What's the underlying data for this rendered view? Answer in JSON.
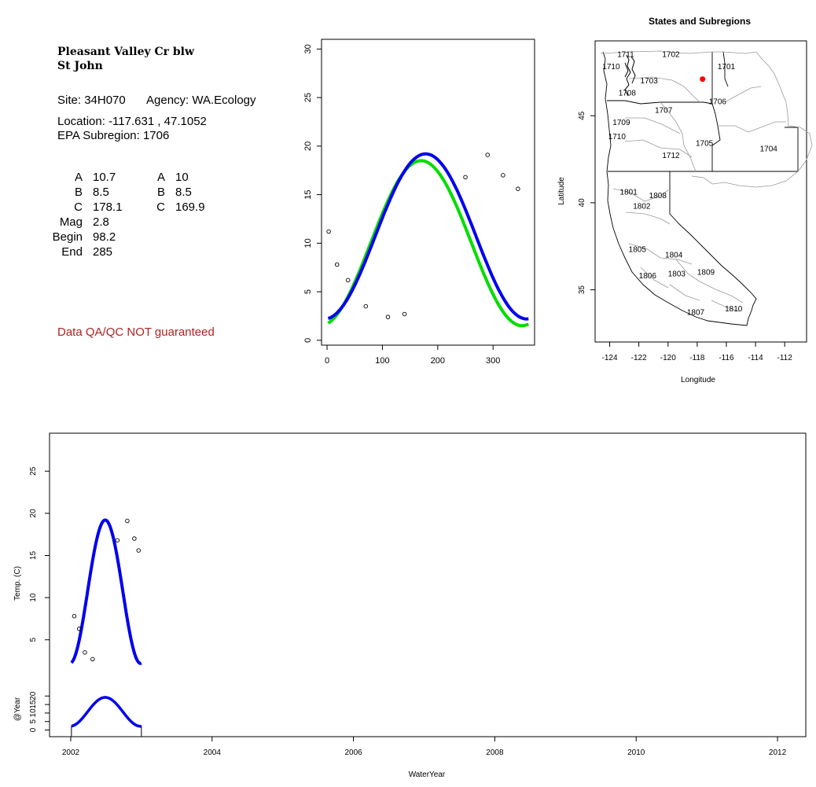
{
  "site_info": {
    "title_line1": "Pleasant Valley Cr blw",
    "title_line2": "St John",
    "site_label": "Site:",
    "site_value": "34H070",
    "agency_label": "Agency:",
    "agency_value": "WA.Ecology",
    "location_label": "Location:",
    "location_value": "-117.631 , 47.1052",
    "subregion_label": "EPA Subregion:",
    "subregion_value": "1706",
    "params_left": [
      {
        "label": "A",
        "value": "10.7"
      },
      {
        "label": "B",
        "value": "8.5"
      },
      {
        "label": "C",
        "value": "178.1"
      },
      {
        "label": "Mag",
        "value": "2.8"
      },
      {
        "label": "Begin",
        "value": "98.2"
      },
      {
        "label": "End",
        "value": "285"
      }
    ],
    "params_right": [
      {
        "label": "A",
        "value": "10"
      },
      {
        "label": "B",
        "value": "8.5"
      },
      {
        "label": "C",
        "value": "169.9"
      }
    ],
    "qa_warning": "Data QA/QC NOT guaranteed",
    "colors": {
      "warning": "#b22222"
    }
  },
  "chart_data": [
    {
      "type": "line",
      "title": "",
      "xlabel": "",
      "ylabel": "",
      "xlim": [
        -10,
        375
      ],
      "ylim": [
        -0.5,
        31
      ],
      "x_ticks": [
        0,
        100,
        200,
        300
      ],
      "y_ticks": [
        0,
        5,
        10,
        15,
        20,
        25,
        30
      ],
      "points": [
        [
          3,
          11.2
        ],
        [
          18,
          7.8
        ],
        [
          38,
          6.2
        ],
        [
          70,
          3.5
        ],
        [
          110,
          2.4
        ],
        [
          140,
          2.7
        ],
        [
          250,
          16.8
        ],
        [
          290,
          19.1
        ],
        [
          318,
          17.0
        ],
        [
          345,
          15.6
        ]
      ],
      "series": [
        {
          "color": "#00dd00",
          "A": 10,
          "B": 8.5,
          "C": 169.9,
          "x_range": [
            2,
            365
          ]
        },
        {
          "color": "#0000ee",
          "A": 10.7,
          "B": 8.5,
          "C": 178.1,
          "x_range": [
            2,
            365
          ]
        }
      ]
    },
    {
      "type": "map",
      "title": "States and Subregions",
      "xlabel": "Longitude",
      "ylabel": "Latitude",
      "xlim": [
        -125,
        -110.5
      ],
      "ylim": [
        32,
        49.3
      ],
      "x_ticks": [
        -124,
        -122,
        -120,
        -118,
        -116,
        -114,
        -112
      ],
      "y_ticks": [
        35,
        40,
        45
      ],
      "site_point": {
        "lon": -117.631,
        "lat": 47.1052,
        "color": "#ff0000"
      },
      "region_labels": [
        {
          "text": "1711",
          "lon": -122.9,
          "lat": 48.5
        },
        {
          "text": "1702",
          "lon": -119.8,
          "lat": 48.5
        },
        {
          "text": "1710",
          "lon": -123.9,
          "lat": 47.8
        },
        {
          "text": "1701",
          "lon": -116.0,
          "lat": 47.8
        },
        {
          "text": "1703",
          "lon": -121.3,
          "lat": 47.0
        },
        {
          "text": "1708",
          "lon": -122.8,
          "lat": 46.3
        },
        {
          "text": "1706",
          "lon": -116.6,
          "lat": 45.8
        },
        {
          "text": "1707",
          "lon": -120.3,
          "lat": 45.3
        },
        {
          "text": "1709",
          "lon": -123.2,
          "lat": 44.6
        },
        {
          "text": "1710",
          "lon": -123.5,
          "lat": 43.8
        },
        {
          "text": "1705",
          "lon": -117.5,
          "lat": 43.4
        },
        {
          "text": "1704",
          "lon": -113.1,
          "lat": 43.1
        },
        {
          "text": "1712",
          "lon": -119.8,
          "lat": 42.7
        },
        {
          "text": "1801",
          "lon": -122.7,
          "lat": 40.6
        },
        {
          "text": "1808",
          "lon": -120.7,
          "lat": 40.4
        },
        {
          "text": "1802",
          "lon": -121.8,
          "lat": 39.8
        },
        {
          "text": "1805",
          "lon": -122.1,
          "lat": 37.3
        },
        {
          "text": "1804",
          "lon": -119.6,
          "lat": 37.0
        },
        {
          "text": "1806",
          "lon": -121.4,
          "lat": 35.8
        },
        {
          "text": "1803",
          "lon": -119.4,
          "lat": 35.9
        },
        {
          "text": "1809",
          "lon": -117.4,
          "lat": 36.0
        },
        {
          "text": "1807",
          "lon": -118.1,
          "lat": 33.7
        },
        {
          "text": "1810",
          "lon": -115.5,
          "lat": 33.9
        }
      ]
    },
    {
      "type": "line",
      "title": "",
      "xlabel": "WaterYear",
      "ylabel": "Temp. (C)",
      "sub_ylabel": "@Year",
      "xlim": [
        2001.7,
        2012.4
      ],
      "ylim": [
        0.5,
        29.5
      ],
      "x_ticks": [
        2002,
        2004,
        2006,
        2008,
        2010,
        2012
      ],
      "y_ticks": [
        5,
        10,
        15,
        20,
        25
      ],
      "sub_y_ticks": [
        0,
        5,
        10,
        15,
        20
      ],
      "sub_ylim": [
        -3,
        28
      ],
      "points": [
        [
          2002.05,
          7.8
        ],
        [
          2002.12,
          6.3
        ],
        [
          2002.2,
          3.5
        ],
        [
          2002.31,
          2.7
        ],
        [
          2002.66,
          16.8
        ],
        [
          2002.8,
          19.1
        ],
        [
          2002.9,
          17.0
        ],
        [
          2002.96,
          15.6
        ]
      ],
      "series": [
        {
          "color": "#0000ee",
          "A": 10.7,
          "B": 8.5,
          "C": 178.1,
          "year": 2002
        }
      ]
    }
  ]
}
